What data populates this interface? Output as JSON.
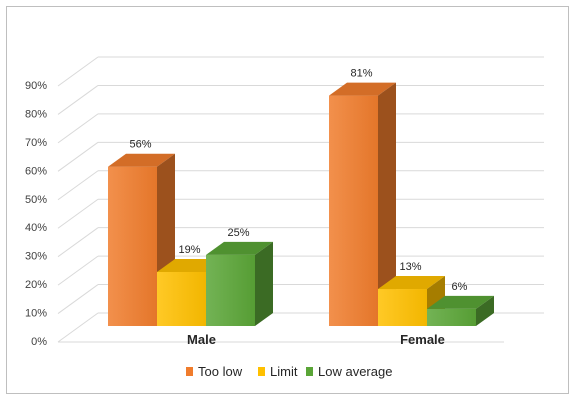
{
  "chart_data": {
    "type": "bar",
    "title": "",
    "xlabel": "",
    "ylabel": "",
    "categories": [
      "Male",
      "Female"
    ],
    "series": [
      {
        "name": "Too low",
        "values": [
          56,
          81
        ],
        "labels": [
          "56%",
          "81%"
        ],
        "color": "#f07c2c"
      },
      {
        "name": "Limit",
        "values": [
          19,
          13
        ],
        "labels": [
          "19%",
          "13%"
        ],
        "color": "#ffc000"
      },
      {
        "name": "Low average",
        "values": [
          25,
          6
        ],
        "labels": [
          "25%",
          "6%"
        ],
        "color": "#5aa537"
      }
    ],
    "ylim": [
      0,
      90
    ],
    "yticks": [
      "0%",
      "10%",
      "20%",
      "30%",
      "40%",
      "50%",
      "60%",
      "70%",
      "80%",
      "90%"
    ],
    "ytick_values": [
      0,
      10,
      20,
      30,
      40,
      50,
      60,
      70,
      80,
      90
    ],
    "grid": true,
    "style": "3d-column",
    "legend_position": "bottom"
  }
}
